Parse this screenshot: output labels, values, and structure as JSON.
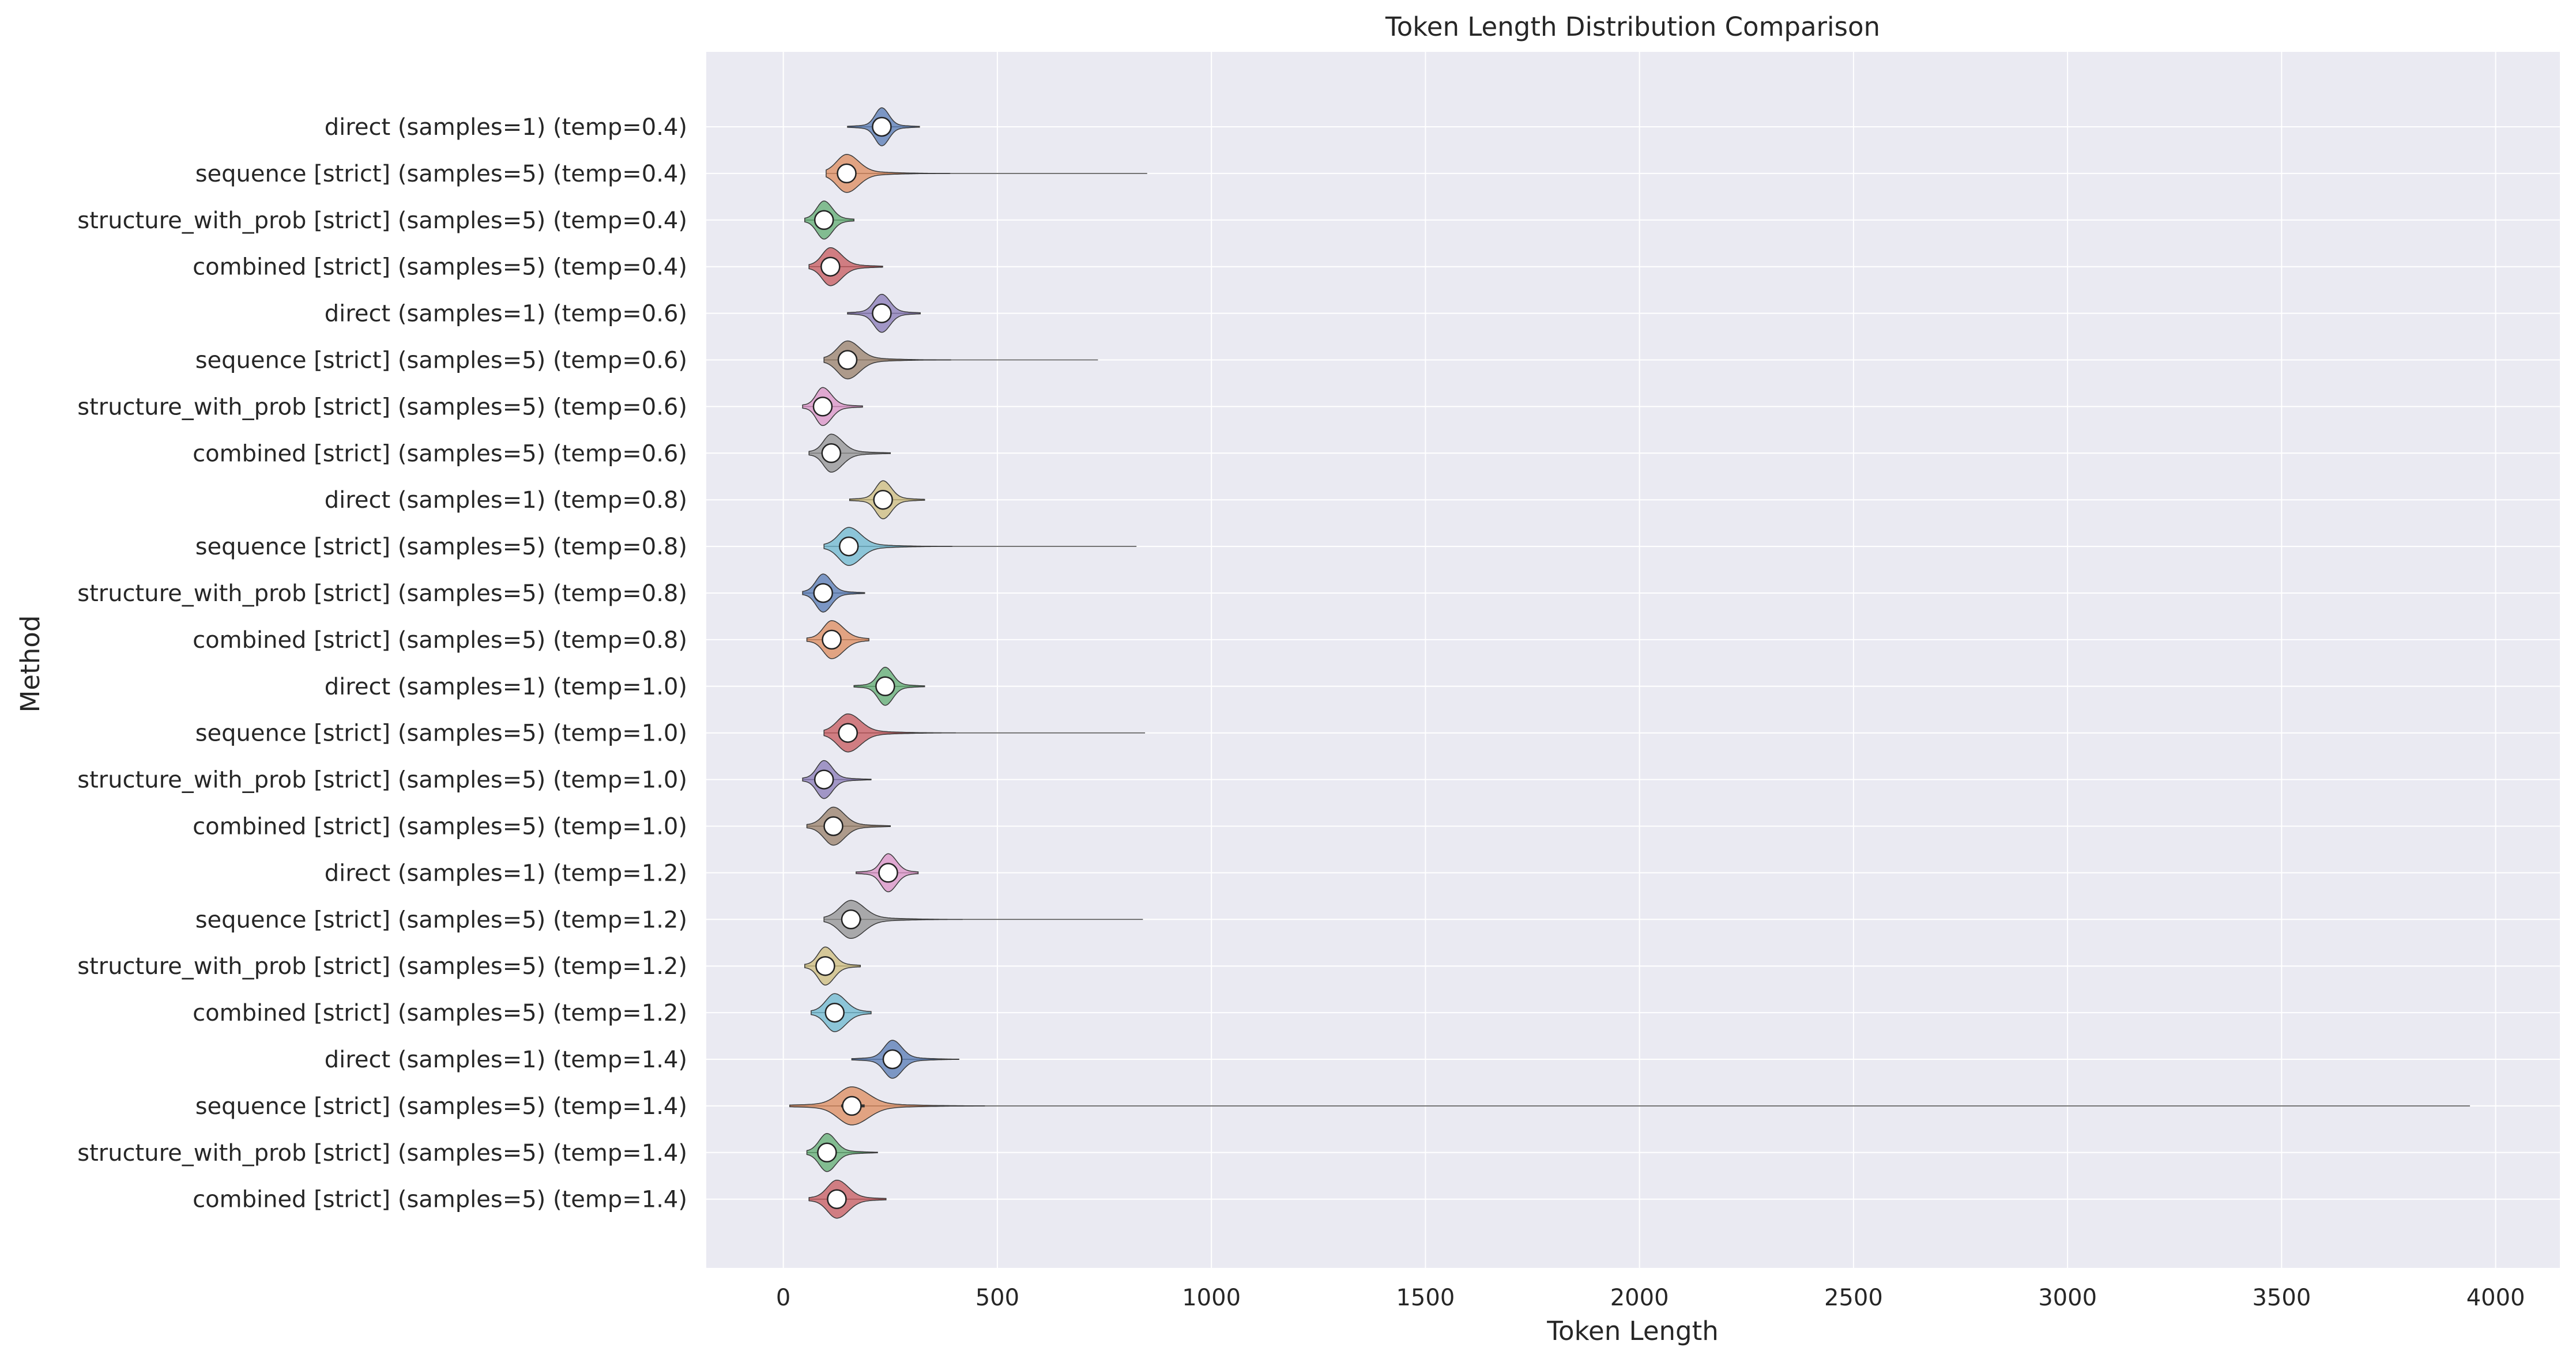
{
  "chart_data": {
    "type": "violin",
    "title": "Token Length Distribution Comparison",
    "xlabel": "Token Length",
    "ylabel": "Method",
    "xlim": [
      -180,
      4150
    ],
    "xticks": [
      0,
      500,
      1000,
      1500,
      2000,
      2500,
      3000,
      3500,
      4000
    ],
    "grid": true,
    "violins": [
      {
        "label": "direct (samples=1) (temp=0.4)",
        "min": 150,
        "q1": 218,
        "median": 230,
        "q3": 243,
        "max": 318,
        "color": "#4c72b0"
      },
      {
        "label": "sequence [strict] (samples=5) (temp=0.4)",
        "min": 100,
        "q1": 130,
        "median": 148,
        "q3": 170,
        "max": 850,
        "color": "#dd8452"
      },
      {
        "label": "structure_with_prob [strict] (samples=5) (temp=0.4)",
        "min": 50,
        "q1": 82,
        "median": 95,
        "q3": 110,
        "max": 165,
        "color": "#55a868"
      },
      {
        "label": "combined [strict] (samples=5) (temp=0.4)",
        "min": 60,
        "q1": 95,
        "median": 110,
        "q3": 130,
        "max": 232,
        "color": "#c44e52"
      },
      {
        "label": "direct (samples=1) (temp=0.6)",
        "min": 150,
        "q1": 216,
        "median": 230,
        "q3": 245,
        "max": 320,
        "color": "#8172b3"
      },
      {
        "label": "sequence [strict] (samples=5) (temp=0.6)",
        "min": 95,
        "q1": 132,
        "median": 150,
        "q3": 172,
        "max": 735,
        "color": "#937860"
      },
      {
        "label": "structure_with_prob [strict] (samples=5) (temp=0.6)",
        "min": 45,
        "q1": 80,
        "median": 92,
        "q3": 108,
        "max": 185,
        "color": "#da8bc3"
      },
      {
        "label": "combined [strict] (samples=5) (temp=0.6)",
        "min": 60,
        "q1": 98,
        "median": 112,
        "q3": 132,
        "max": 250,
        "color": "#8c8c8c"
      },
      {
        "label": "direct (samples=1) (temp=0.8)",
        "min": 155,
        "q1": 220,
        "median": 233,
        "q3": 248,
        "max": 330,
        "color": "#ccb974"
      },
      {
        "label": "sequence [strict] (samples=5) (temp=0.8)",
        "min": 95,
        "q1": 135,
        "median": 153,
        "q3": 175,
        "max": 825,
        "color": "#64b5cd"
      },
      {
        "label": "structure_with_prob [strict] (samples=5) (temp=0.8)",
        "min": 45,
        "q1": 80,
        "median": 93,
        "q3": 108,
        "max": 190,
        "color": "#4c72b0"
      },
      {
        "label": "combined [strict] (samples=5) (temp=0.8)",
        "min": 55,
        "q1": 98,
        "median": 113,
        "q3": 134,
        "max": 200,
        "color": "#dd8452"
      },
      {
        "label": "direct (samples=1) (temp=1.0)",
        "min": 165,
        "q1": 225,
        "median": 238,
        "q3": 252,
        "max": 330,
        "color": "#55a868"
      },
      {
        "label": "sequence [strict] (samples=5) (temp=1.0)",
        "min": 95,
        "q1": 132,
        "median": 151,
        "q3": 174,
        "max": 845,
        "color": "#c44e52"
      },
      {
        "label": "structure_with_prob [strict] (samples=5) (temp=1.0)",
        "min": 45,
        "q1": 82,
        "median": 95,
        "q3": 110,
        "max": 205,
        "color": "#8172b3"
      },
      {
        "label": "combined [strict] (samples=5) (temp=1.0)",
        "min": 55,
        "q1": 100,
        "median": 117,
        "q3": 137,
        "max": 250,
        "color": "#937860"
      },
      {
        "label": "direct (samples=1) (temp=1.2)",
        "min": 170,
        "q1": 232,
        "median": 245,
        "q3": 260,
        "max": 315,
        "color": "#da8bc3"
      },
      {
        "label": "sequence [strict] (samples=5) (temp=1.2)",
        "min": 95,
        "q1": 138,
        "median": 158,
        "q3": 182,
        "max": 840,
        "color": "#8c8c8c"
      },
      {
        "label": "structure_with_prob [strict] (samples=5) (temp=1.2)",
        "min": 50,
        "q1": 85,
        "median": 98,
        "q3": 114,
        "max": 180,
        "color": "#ccb974"
      },
      {
        "label": "combined [strict] (samples=5) (temp=1.2)",
        "min": 65,
        "q1": 104,
        "median": 120,
        "q3": 140,
        "max": 205,
        "color": "#64b5cd"
      },
      {
        "label": "direct (samples=1) (temp=1.4)",
        "min": 160,
        "q1": 240,
        "median": 255,
        "q3": 272,
        "max": 410,
        "color": "#4c72b0"
      },
      {
        "label": "sequence [strict] (samples=5) (temp=1.4)",
        "min": 15,
        "q1": 135,
        "median": 160,
        "q3": 190,
        "max": 3940,
        "color": "#dd8452"
      },
      {
        "label": "structure_with_prob [strict] (samples=5) (temp=1.4)",
        "min": 55,
        "q1": 88,
        "median": 102,
        "q3": 118,
        "max": 220,
        "color": "#55a868"
      },
      {
        "label": "combined [strict] (samples=5) (temp=1.4)",
        "min": 60,
        "q1": 108,
        "median": 125,
        "q3": 146,
        "max": 240,
        "color": "#c44e52"
      }
    ]
  }
}
